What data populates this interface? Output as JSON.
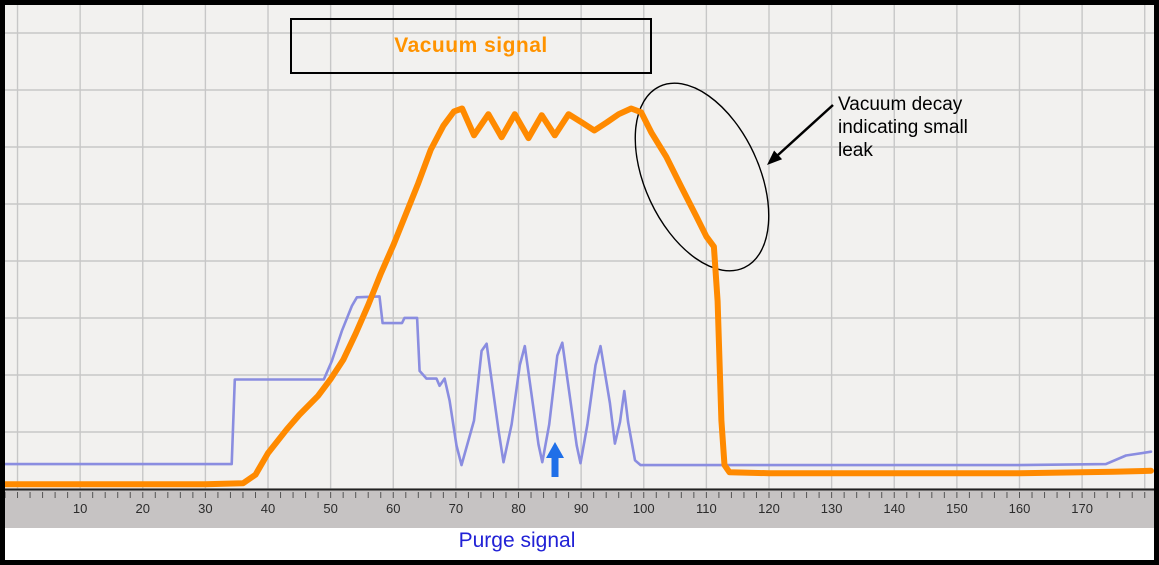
{
  "chart_data": {
    "type": "line",
    "title": "",
    "x_axis": {
      "min": -2,
      "max": 181,
      "tick_labels": [
        "10",
        "20",
        "30",
        "40",
        "50",
        "60",
        "70",
        "80",
        "90",
        "100",
        "110",
        "120",
        "130",
        "140",
        "150",
        "160",
        "170"
      ],
      "tick_start": 10,
      "tick_step": 10,
      "grid_start": 0,
      "grid_end": 180,
      "grid_step": 10,
      "minor_tick_step": 2
    },
    "y_axis": {
      "min": 0,
      "max": 100,
      "gridline_count": 9,
      "labels_visible": false
    },
    "series": [
      {
        "name": "Vacuum signal",
        "color": "#ff8a00",
        "points": [
          [
            -2,
            1
          ],
          [
            20,
            1
          ],
          [
            30,
            1
          ],
          [
            36,
            1.2
          ],
          [
            38,
            3
          ],
          [
            40,
            7.5
          ],
          [
            43,
            12.5
          ],
          [
            45,
            15.5
          ],
          [
            48,
            19.5
          ],
          [
            50,
            23
          ],
          [
            52,
            27
          ],
          [
            54,
            32.5
          ],
          [
            56,
            38.5
          ],
          [
            58,
            45
          ],
          [
            60,
            51
          ],
          [
            62,
            57.5
          ],
          [
            64,
            64
          ],
          [
            66,
            71
          ],
          [
            68,
            76
          ],
          [
            69.7,
            79
          ],
          [
            71,
            79.6
          ],
          [
            72.9,
            74
          ],
          [
            75.2,
            78.4
          ],
          [
            77.3,
            73.6
          ],
          [
            79.4,
            78.4
          ],
          [
            81.6,
            73.4
          ],
          [
            83.7,
            78.2
          ],
          [
            85.8,
            74
          ],
          [
            88,
            78.4
          ],
          [
            90.1,
            76.7
          ],
          [
            92.1,
            75
          ],
          [
            94.1,
            76.7
          ],
          [
            96,
            78.4
          ],
          [
            98,
            79.6
          ],
          [
            99.6,
            78.8
          ],
          [
            101.2,
            74.6
          ],
          [
            103.6,
            69.5
          ],
          [
            106,
            63.2
          ],
          [
            108.4,
            57
          ],
          [
            110,
            52.8
          ],
          [
            111.2,
            50.7
          ],
          [
            111.8,
            39.3
          ],
          [
            112.4,
            14.3
          ],
          [
            112.9,
            5
          ],
          [
            113.7,
            3.5
          ],
          [
            120,
            3.3
          ],
          [
            140,
            3.3
          ],
          [
            160,
            3.3
          ],
          [
            175,
            3.6
          ],
          [
            181,
            3.8
          ]
        ]
      },
      {
        "name": "Purge signal",
        "color": "#8a8de0",
        "points": [
          [
            -2,
            5.2
          ],
          [
            30,
            5.2
          ],
          [
            34.2,
            5.2
          ],
          [
            34.7,
            22.9
          ],
          [
            48.9,
            22.9
          ],
          [
            50.2,
            26.8
          ],
          [
            51.8,
            33.1
          ],
          [
            53.4,
            38.3
          ],
          [
            54.2,
            40.1
          ],
          [
            57.8,
            40.3
          ],
          [
            58.3,
            34.7
          ],
          [
            61.4,
            34.7
          ],
          [
            61.8,
            35.8
          ],
          [
            63.8,
            35.8
          ],
          [
            64.2,
            24.7
          ],
          [
            65.3,
            23.1
          ],
          [
            66.9,
            23.1
          ],
          [
            67.4,
            21.6
          ],
          [
            68.2,
            23.1
          ],
          [
            69,
            18.5
          ],
          [
            70.1,
            9.1
          ],
          [
            70.9,
            5
          ],
          [
            72.9,
            14.3
          ],
          [
            74.1,
            28.9
          ],
          [
            74.9,
            30.4
          ],
          [
            76.8,
            12.3
          ],
          [
            77.6,
            5.6
          ],
          [
            78.9,
            13.5
          ],
          [
            80.2,
            25.9
          ],
          [
            81,
            29.9
          ],
          [
            83.2,
            9.3
          ],
          [
            83.8,
            5.6
          ],
          [
            84.9,
            13.5
          ],
          [
            86.2,
            27.9
          ],
          [
            87,
            30.6
          ],
          [
            89.3,
            9.1
          ],
          [
            89.9,
            5.4
          ],
          [
            91,
            13.5
          ],
          [
            92.3,
            25.9
          ],
          [
            93.1,
            29.9
          ],
          [
            94.6,
            18
          ],
          [
            95.4,
            9.5
          ],
          [
            96.2,
            14
          ],
          [
            96.9,
            20.5
          ],
          [
            97.5,
            14
          ],
          [
            98.6,
            6
          ],
          [
            99.5,
            5
          ],
          [
            110,
            5
          ],
          [
            130,
            5
          ],
          [
            160,
            5
          ],
          [
            173.8,
            5.2
          ],
          [
            177,
            7
          ],
          [
            181,
            7.8
          ]
        ]
      }
    ],
    "legend_position": "top-center"
  },
  "annotations": {
    "legend_label": "Vacuum signal",
    "note_lines": [
      "Vacuum decay",
      "indicating small",
      "leak"
    ],
    "purge_label": "Purge signal"
  },
  "colors": {
    "vacuum": "#ff9300",
    "vacuum_line": "#ff8a00",
    "purge_line": "#8a8de0",
    "purge_arrow": "#1f6fe8",
    "purge_text": "#2121d6",
    "plot_bg": "#f2f1ef",
    "grid": "#c7c7c7",
    "axis_strip": "#c6c3c3",
    "axis_line": "#222222",
    "annotation_ink": "#000000"
  }
}
